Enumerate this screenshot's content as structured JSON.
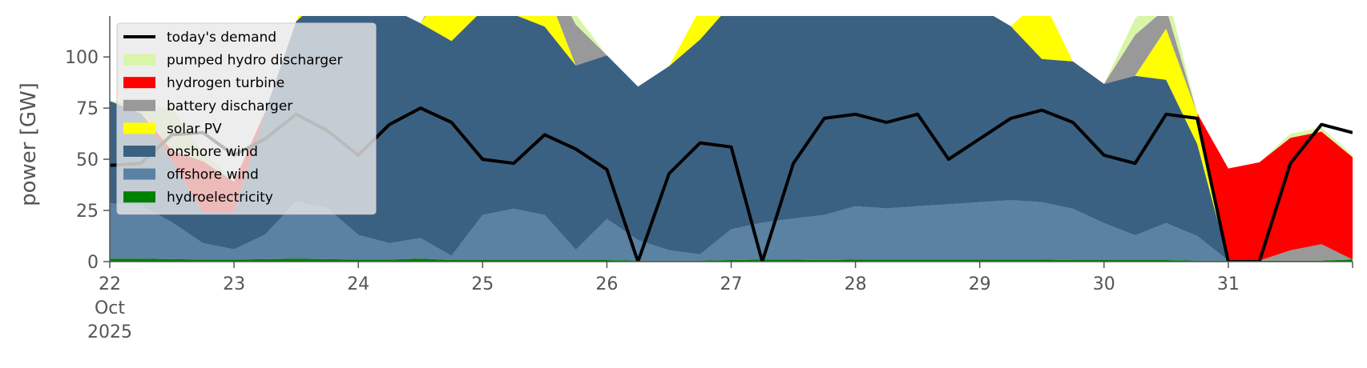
{
  "chart_data": {
    "type": "area",
    "ylabel": "power [GW]",
    "ylim": [
      0,
      120
    ],
    "xlim": [
      "2025-10-22",
      "2025-11-01"
    ],
    "y_ticks": [
      0,
      25,
      50,
      75,
      100
    ],
    "x_tick_labels": [
      "22",
      "23",
      "24",
      "25",
      "26",
      "27",
      "28",
      "29",
      "30",
      "31"
    ],
    "x_tick_month": "Oct",
    "x_tick_year": "2025",
    "legend_position": "top-left",
    "grid": false,
    "x": [
      "2025-10-22 00:00",
      "2025-10-22 06:00",
      "2025-10-22 12:00",
      "2025-10-22 18:00",
      "2025-10-23 00:00",
      "2025-10-23 06:00",
      "2025-10-23 12:00",
      "2025-10-23 18:00",
      "2025-10-24 00:00",
      "2025-10-24 06:00",
      "2025-10-24 12:00",
      "2025-10-24 18:00",
      "2025-10-25 00:00",
      "2025-10-25 06:00",
      "2025-10-25 12:00",
      "2025-10-25 18:00",
      "2025-10-26 00:00",
      "2025-10-26 06:00",
      "2025-10-26 12:00",
      "2025-10-26 18:00",
      "2025-10-27 00:00",
      "2025-10-27 06:00",
      "2025-10-27 12:00",
      "2025-10-27 18:00",
      "2025-10-28 00:00",
      "2025-10-28 06:00",
      "2025-10-28 12:00",
      "2025-10-28 18:00",
      "2025-10-29 00:00",
      "2025-10-29 06:00",
      "2025-10-29 12:00",
      "2025-10-29 18:00",
      "2025-10-30 00:00",
      "2025-10-30 06:00",
      "2025-10-30 12:00",
      "2025-10-30 18:00",
      "2025-10-31 00:00",
      "2025-10-31 06:00",
      "2025-10-31 12:00",
      "2025-10-31 18:00",
      "2025-11-01 00:00"
    ],
    "series": [
      {
        "name": "hydroelectricity",
        "color": "#008000",
        "values": [
          1.5,
          1.5,
          1.2,
          1.0,
          1.0,
          1.2,
          1.4,
          1.2,
          1.0,
          1.0,
          1.5,
          0.8,
          0.8,
          0.8,
          0.8,
          0.8,
          0.8,
          0.5,
          0.5,
          0.5,
          0.8,
          1.0,
          1.0,
          0.8,
          1.0,
          1.0,
          1.0,
          1.0,
          1.0,
          1.0,
          1.0,
          0.8,
          0.8,
          0.8,
          0.8,
          0.5,
          0.5,
          0.5,
          0.5,
          0.5,
          1.0
        ]
      },
      {
        "name": "offshore wind",
        "color": "#5b81a3",
        "values": [
          27,
          26,
          18,
          8,
          5,
          12,
          28,
          25,
          12,
          8,
          10,
          2,
          22,
          25,
          22,
          5,
          20,
          10,
          5,
          3,
          15,
          18,
          20,
          22,
          26,
          25,
          26,
          27,
          28,
          29,
          28,
          25,
          18,
          12,
          18,
          12,
          0,
          0,
          0,
          0,
          0
        ]
      },
      {
        "name": "onshore wind",
        "color": "#3b6182",
        "values": [
          50,
          45,
          30,
          15,
          18,
          60,
          88,
          105,
          110,
          115,
          105,
          105,
          100,
          95,
          92,
          90,
          80,
          75,
          90,
          105,
          110,
          115,
          110,
          100,
          105,
          112,
          110,
          100,
          95,
          85,
          70,
          72,
          68,
          78,
          70,
          45,
          0,
          0,
          0,
          0,
          0
        ]
      },
      {
        "name": "solar PV",
        "color": "#ffff00",
        "values": [
          0,
          0,
          0,
          0,
          0,
          0,
          0,
          20,
          0,
          0,
          0,
          30,
          0,
          0,
          20,
          0,
          0,
          0,
          0,
          15,
          0,
          0,
          20,
          0,
          0,
          0,
          25,
          0,
          0,
          0,
          30,
          0,
          0,
          0,
          25,
          15,
          0,
          0,
          0,
          0,
          0
        ]
      },
      {
        "name": "battery discharger",
        "color": "#999999",
        "values": [
          0,
          0,
          0,
          0,
          0,
          0,
          0,
          0,
          0,
          0,
          0,
          5,
          5,
          5,
          10,
          20,
          0,
          0,
          0,
          0,
          0,
          0,
          0,
          0,
          0,
          0,
          0,
          5,
          0,
          0,
          0,
          0,
          0,
          20,
          10,
          0,
          0,
          0,
          5,
          8,
          0
        ]
      },
      {
        "name": "hydrogen turbine",
        "color": "#ff0000",
        "values": [
          0,
          0,
          5,
          25,
          15,
          0,
          0,
          0,
          0,
          0,
          0,
          0,
          0,
          0,
          0,
          0,
          0,
          0,
          0,
          0,
          0,
          0,
          0,
          0,
          0,
          0,
          0,
          0,
          0,
          0,
          0,
          0,
          0,
          0,
          0,
          0,
          45,
          48,
          55,
          55,
          50
        ]
      },
      {
        "name": "pumped hydro discharger",
        "color": "#d9f5a8",
        "values": [
          0,
          5,
          20,
          5,
          0,
          0,
          0,
          0,
          0,
          0,
          0,
          0,
          0,
          0,
          0,
          5,
          0,
          0,
          0,
          0,
          0,
          0,
          0,
          0,
          0,
          0,
          0,
          0,
          0,
          0,
          0,
          0,
          0,
          8,
          10,
          0,
          0,
          0,
          2,
          2,
          1
        ]
      }
    ],
    "demand": {
      "name": "today's demand",
      "color": "#000000",
      "values": [
        47,
        48,
        62,
        63,
        52,
        60,
        72,
        64,
        52,
        67,
        75,
        68,
        50,
        48,
        62,
        55,
        45,
        0,
        43,
        58,
        56,
        0,
        48,
        70,
        72,
        68,
        72,
        50,
        60,
        70,
        74,
        68,
        52,
        48,
        72,
        70,
        0,
        0,
        48,
        67,
        63
      ]
    }
  }
}
